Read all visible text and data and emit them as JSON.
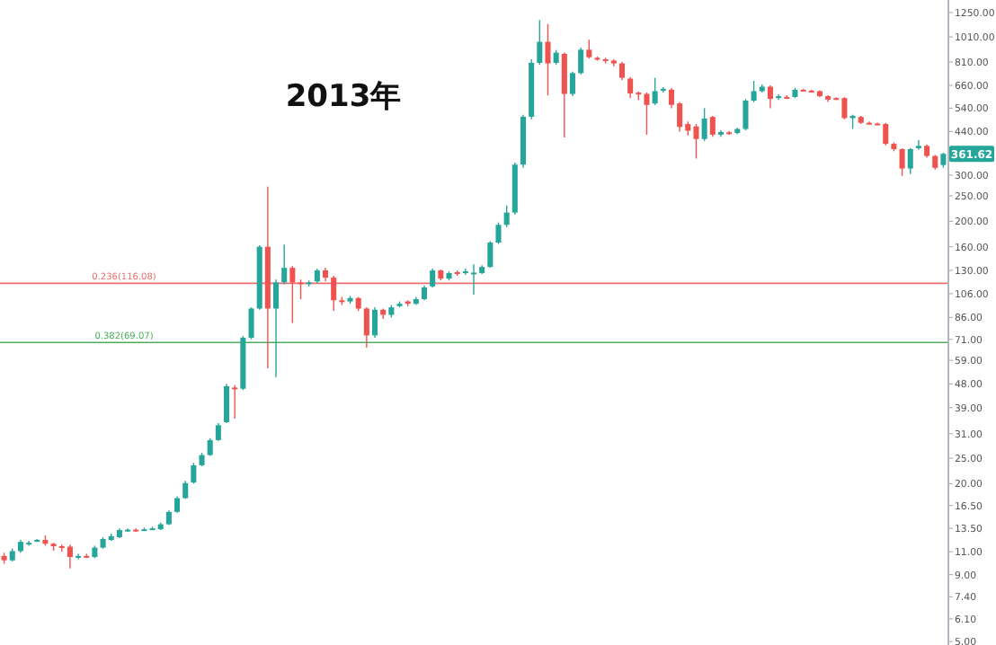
{
  "chart_data": {
    "type": "candlestick",
    "title": "2013年",
    "log": "y",
    "tick_labels": "y",
    "categories": [
      null,
      null,
      null,
      null,
      null,
      null,
      null,
      null,
      null,
      null,
      null,
      null,
      null,
      null,
      null,
      null,
      null,
      null,
      null,
      null,
      null,
      null,
      null,
      null,
      null,
      null,
      null,
      null,
      null,
      null,
      null,
      null,
      null,
      null,
      null,
      null,
      null,
      null,
      null,
      null,
      null,
      null,
      null,
      null,
      null,
      null,
      null,
      null,
      null,
      null,
      null,
      null,
      null,
      null,
      null,
      null,
      null,
      null,
      null,
      null,
      null,
      null,
      null,
      null,
      null,
      null,
      null,
      null,
      null,
      null,
      null,
      null,
      null,
      null,
      null,
      null,
      null,
      null,
      null,
      null,
      null,
      null,
      null,
      null,
      null,
      null,
      null,
      null,
      null,
      null,
      null,
      null,
      null,
      null,
      null,
      null,
      null,
      null,
      null,
      null,
      null,
      null,
      null,
      null,
      null,
      null,
      null,
      null,
      null,
      null,
      null,
      null,
      null,
      null,
      null
    ],
    "ohlc": [
      [
        10.6,
        10.9,
        9.9,
        10.2
      ],
      [
        10.2,
        11.3,
        10.1,
        11.06
      ],
      [
        11.06,
        12.2,
        10.9,
        12.0
      ],
      [
        11.8,
        12.1,
        11.6,
        11.9
      ],
      [
        12.1,
        12.3,
        12.0,
        12.2
      ],
      [
        12.2,
        12.7,
        11.6,
        11.8
      ],
      [
        11.8,
        11.9,
        11.1,
        11.55
      ],
      [
        11.55,
        11.7,
        11.0,
        11.5
      ],
      [
        11.5,
        11.7,
        9.5,
        10.5
      ],
      [
        10.5,
        10.8,
        10.3,
        10.6
      ],
      [
        10.6,
        10.8,
        10.4,
        10.5
      ],
      [
        10.5,
        11.6,
        10.4,
        11.4
      ],
      [
        11.4,
        12.5,
        11.3,
        12.3
      ],
      [
        12.2,
        12.9,
        12.1,
        12.6
      ],
      [
        12.5,
        13.5,
        12.4,
        13.3
      ],
      [
        13.3,
        13.5,
        13.1,
        13.35
      ],
      [
        13.35,
        13.5,
        13.1,
        13.3
      ],
      [
        13.3,
        13.6,
        13.2,
        13.4
      ],
      [
        13.4,
        13.7,
        13.3,
        13.5
      ],
      [
        13.4,
        14.2,
        13.3,
        14.0
      ],
      [
        14.0,
        15.8,
        13.9,
        15.6
      ],
      [
        15.6,
        17.9,
        15.5,
        17.6
      ],
      [
        17.6,
        20.5,
        17.5,
        20.1
      ],
      [
        20.2,
        24,
        20,
        23.5
      ],
      [
        23.5,
        26.2,
        23.3,
        25.7
      ],
      [
        25.7,
        29.8,
        25.5,
        29.3
      ],
      [
        29.3,
        34,
        29.1,
        33.4
      ],
      [
        34.3,
        48,
        34,
        47
      ],
      [
        46.5,
        47.5,
        35.4,
        46
      ],
      [
        46,
        73,
        45.5,
        72
      ],
      [
        72,
        94,
        71,
        93
      ],
      [
        93,
        162,
        92,
        160
      ],
      [
        160,
        271,
        55,
        93
      ],
      [
        93,
        120,
        51,
        117
      ],
      [
        117,
        163,
        115,
        133
      ],
      [
        133,
        135,
        82,
        117
      ],
      [
        117,
        120,
        101,
        116
      ],
      [
        116,
        119,
        113,
        117
      ],
      [
        118,
        132,
        116,
        130
      ],
      [
        130,
        133,
        118,
        122
      ],
      [
        122,
        124,
        91,
        100
      ],
      [
        100,
        103,
        96,
        99
      ],
      [
        99,
        104,
        97,
        102
      ],
      [
        102,
        103,
        91,
        93
      ],
      [
        93,
        94,
        66,
        73.5
      ],
      [
        73.5,
        94,
        72,
        92
      ],
      [
        92,
        93,
        85,
        88
      ],
      [
        88,
        96,
        86,
        94
      ],
      [
        95,
        99,
        94,
        97
      ],
      [
        99,
        100,
        95,
        97
      ],
      [
        97,
        103,
        96,
        101
      ],
      [
        101,
        114,
        100,
        112
      ],
      [
        113,
        132,
        112,
        130
      ],
      [
        130,
        131,
        119,
        121
      ],
      [
        121,
        129,
        119,
        127
      ],
      [
        128,
        130,
        124,
        126
      ],
      [
        127,
        132,
        125,
        129
      ],
      [
        127,
        137,
        105,
        127.5
      ],
      [
        127,
        136,
        126,
        134
      ],
      [
        134,
        168,
        133,
        166
      ],
      [
        166,
        198,
        164,
        194
      ],
      [
        194,
        230,
        190,
        216
      ],
      [
        216,
        335,
        212,
        329
      ],
      [
        329,
        510,
        320,
        501
      ],
      [
        501,
        830,
        490,
        804
      ],
      [
        804,
        1170,
        790,
        967
      ],
      [
        967,
        1130,
        604,
        800
      ],
      [
        804,
        900,
        790,
        879
      ],
      [
        870,
        880,
        418,
        612
      ],
      [
        612,
        745,
        600,
        735
      ],
      [
        735,
        920,
        725,
        902
      ],
      [
        902,
        985,
        835,
        845
      ],
      [
        840,
        850,
        820,
        835
      ],
      [
        830,
        840,
        800,
        820
      ],
      [
        820,
        830,
        780,
        800
      ],
      [
        800,
        810,
        690,
        705
      ],
      [
        700,
        710,
        590,
        615
      ],
      [
        619,
        625,
        580,
        612
      ],
      [
        612,
        620,
        428,
        556
      ],
      [
        563,
        705,
        555,
        627
      ],
      [
        630,
        650,
        620,
        640
      ],
      [
        635,
        645,
        540,
        556
      ],
      [
        563,
        570,
        440,
        458
      ],
      [
        470,
        480,
        425,
        443
      ],
      [
        460,
        470,
        347,
        412
      ],
      [
        412,
        540,
        405,
        493
      ],
      [
        500,
        505,
        420,
        428
      ],
      [
        428,
        445,
        420,
        438
      ],
      [
        437,
        442,
        428,
        434
      ],
      [
        434,
        455,
        430,
        450
      ],
      [
        450,
        585,
        445,
        577
      ],
      [
        577,
        687,
        570,
        627
      ],
      [
        627,
        665,
        620,
        652
      ],
      [
        652,
        660,
        540,
        586
      ],
      [
        590,
        610,
        580,
        600
      ],
      [
        596,
        605,
        585,
        594
      ],
      [
        596,
        645,
        590,
        635
      ],
      [
        635,
        640,
        625,
        630
      ],
      [
        630,
        635,
        618,
        625
      ],
      [
        627,
        632,
        595,
        600
      ],
      [
        600,
        605,
        570,
        582
      ],
      [
        590,
        595,
        580,
        588
      ],
      [
        590,
        595,
        490,
        495
      ],
      [
        495,
        510,
        450,
        505
      ],
      [
        500,
        505,
        470,
        475
      ],
      [
        475,
        480,
        468,
        472
      ],
      [
        472,
        476,
        465,
        470
      ],
      [
        470,
        475,
        390,
        395
      ],
      [
        395,
        400,
        370,
        377
      ],
      [
        377,
        380,
        298,
        318
      ],
      [
        318,
        380,
        303,
        377
      ],
      [
        380,
        408,
        375,
        388
      ],
      [
        388,
        392,
        350,
        355
      ],
      [
        355,
        358,
        315,
        320
      ],
      [
        328,
        365,
        320,
        361.62
      ]
    ],
    "ylim": [
      4.85,
      1396
    ],
    "yticks": [
      {
        "value": 1250,
        "label": "1250.00"
      },
      {
        "value": 1010,
        "label": "1010.00"
      },
      {
        "value": 810,
        "label": "810.00"
      },
      {
        "value": 660,
        "label": "660.00"
      },
      {
        "value": 540,
        "label": "540.00"
      },
      {
        "value": 440,
        "label": "440.00"
      },
      {
        "value": 300,
        "label": "300.00"
      },
      {
        "value": 250,
        "label": "250.00"
      },
      {
        "value": 200,
        "label": "200.00"
      },
      {
        "value": 160,
        "label": "160.00"
      },
      {
        "value": 130,
        "label": "130.00"
      },
      {
        "value": 106,
        "label": "106.00"
      },
      {
        "value": 86,
        "label": "86.00"
      },
      {
        "value": 71,
        "label": "71.00"
      },
      {
        "value": 59,
        "label": "59.00"
      },
      {
        "value": 48,
        "label": "48.00"
      },
      {
        "value": 39,
        "label": "39.00"
      },
      {
        "value": 31,
        "label": "31.00"
      },
      {
        "value": 25,
        "label": "25.00"
      },
      {
        "value": 20,
        "label": "20.00"
      },
      {
        "value": 16.5,
        "label": "16.50"
      },
      {
        "value": 13.5,
        "label": "13.50"
      },
      {
        "value": 11,
        "label": "11.00"
      },
      {
        "value": 9,
        "label": "9.00"
      },
      {
        "value": 7.4,
        "label": "7.40"
      },
      {
        "value": 6.1,
        "label": "6.10"
      },
      {
        "value": 5,
        "label": "5.00"
      }
    ],
    "ref_lines": [
      {
        "axis": "y",
        "value": 116.08,
        "label": "0.236(116.08)",
        "color": "#ee6e6e"
      },
      {
        "axis": "y",
        "value": 69.07,
        "label": "0.382(69.07)",
        "color": "#4cae5c"
      }
    ],
    "annotations": [
      {
        "text": "361.62",
        "y": 361.62
      }
    ]
  }
}
